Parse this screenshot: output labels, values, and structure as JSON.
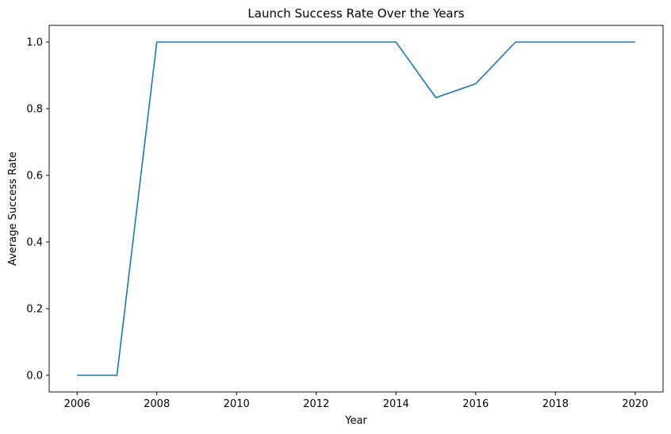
{
  "chart_data": {
    "type": "line",
    "title": "Launch Success Rate Over the Years",
    "x_label": "Year",
    "y_label": "Average Success Rate",
    "x": [
      2006,
      2007,
      2008,
      2009,
      2010,
      2011,
      2012,
      2013,
      2014,
      2015,
      2016,
      2017,
      2018,
      2019,
      2020
    ],
    "series": [
      {
        "color": "#1f77b4",
        "values": [
          0,
          0,
          1,
          1,
          1,
          1,
          1,
          1,
          1,
          0.833,
          0.875,
          1,
          1,
          1,
          1
        ]
      }
    ],
    "xlim": [
      2005.3,
      2020.7
    ],
    "xticks": [
      2006,
      2008,
      2010,
      2012,
      2014,
      2016,
      2018,
      2020
    ],
    "ylim": [
      -0.05,
      1.05
    ],
    "yticks": [
      {
        "value": 0,
        "label": "0.0"
      },
      0.2,
      0.4,
      0.6,
      0.8,
      {
        "value": 1,
        "label": "1.0"
      }
    ],
    "grid": false
  }
}
